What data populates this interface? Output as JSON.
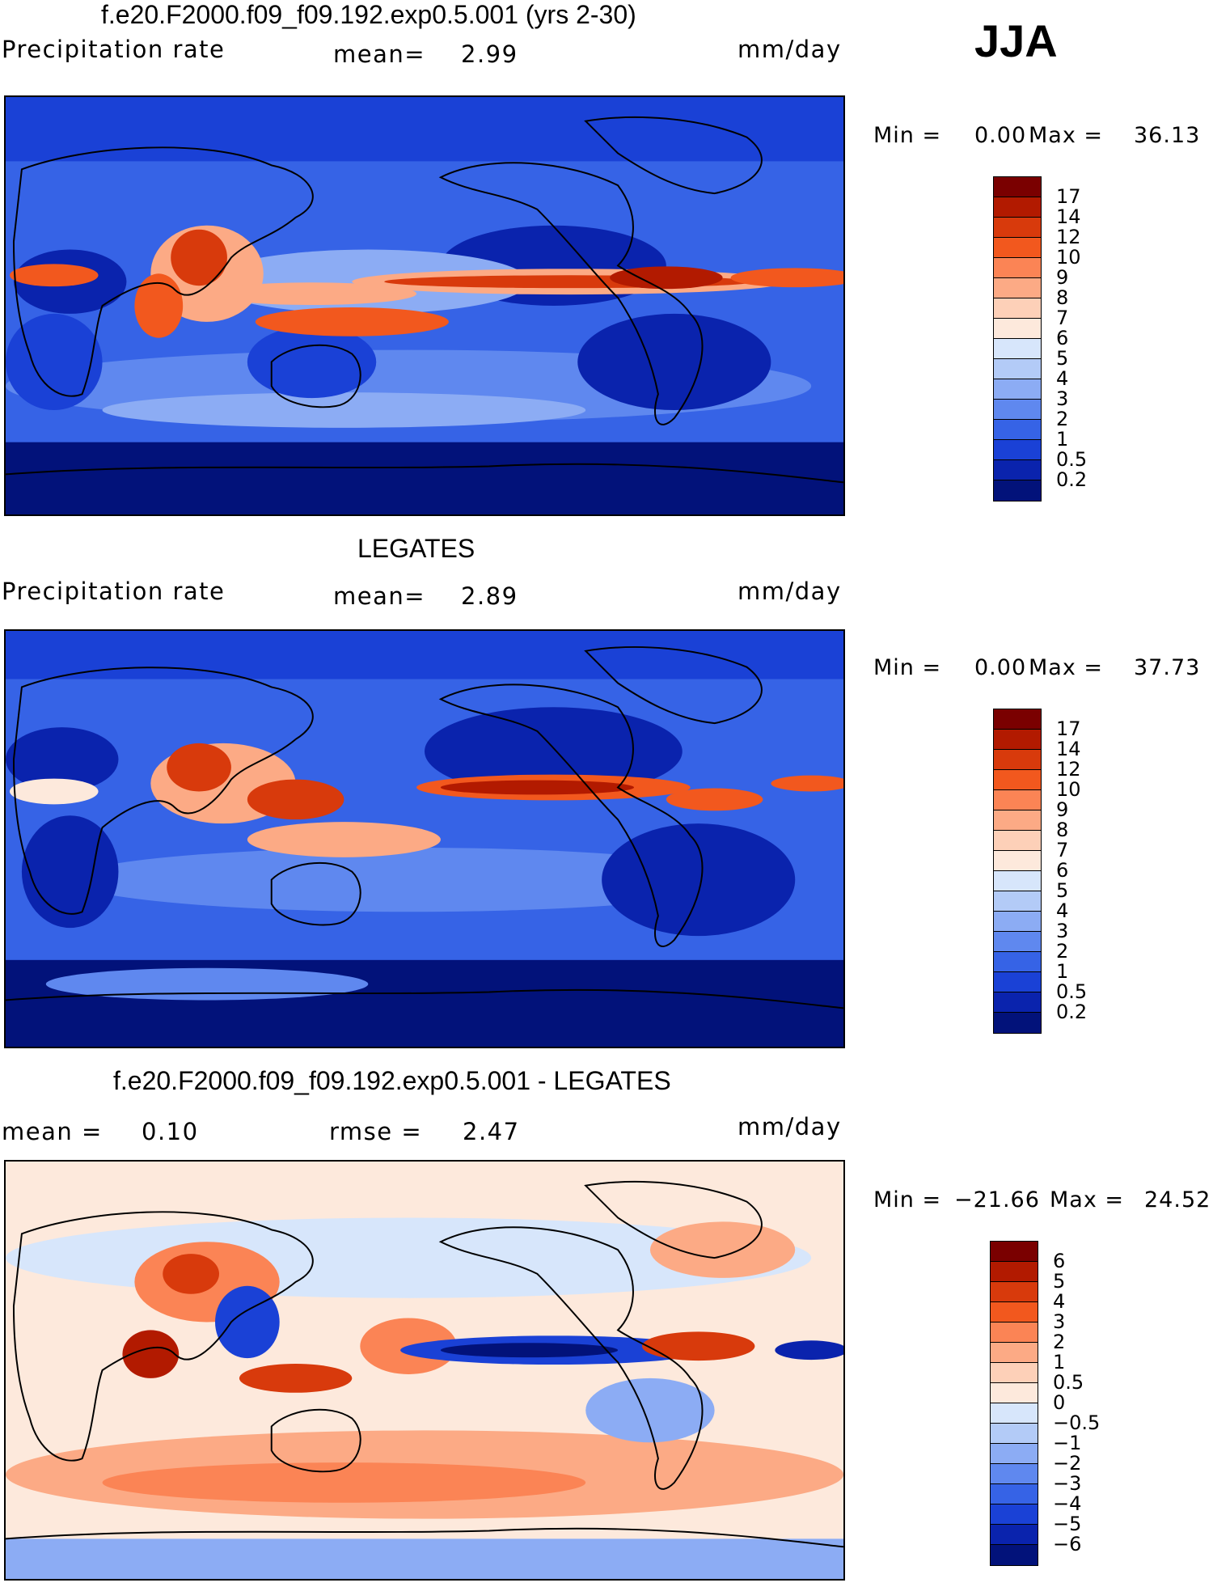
{
  "season": "JJA",
  "panels": [
    {
      "title": "f.e20.F2000.f09_f09.192.exp0.5.001 (yrs 2-30)",
      "left_label": "Precipitation rate",
      "mid_label": "mean=",
      "mid_value": "2.99",
      "units": "mm/day",
      "min_label": "Min =",
      "min_value": "0.00",
      "max_label": "Max =",
      "max_value": "36.13",
      "colorbar": {
        "levels": [
          "17",
          "14",
          "12",
          "10",
          "9",
          "8",
          "7",
          "6",
          "5",
          "4",
          "3",
          "2",
          "1",
          "0.5",
          "0.2"
        ],
        "colors": [
          "#7a0000",
          "#b21a00",
          "#d83a0c",
          "#f2581e",
          "#fb8455",
          "#fcaa85",
          "#fdd0b8",
          "#fde9dc",
          "#d7e6fb",
          "#b3cbf7",
          "#8cacf4",
          "#5f88ef",
          "#3663e6",
          "#1a41d6",
          "#0a23ad",
          "#02127a"
        ]
      }
    },
    {
      "title": "LEGATES",
      "left_label": "Precipitation rate",
      "mid_label": "mean=",
      "mid_value": "2.89",
      "units": "mm/day",
      "min_label": "Min =",
      "min_value": "0.00",
      "max_label": "Max =",
      "max_value": "37.73",
      "colorbar": {
        "levels": [
          "17",
          "14",
          "12",
          "10",
          "9",
          "8",
          "7",
          "6",
          "5",
          "4",
          "3",
          "2",
          "1",
          "0.5",
          "0.2"
        ],
        "colors": [
          "#7a0000",
          "#b21a00",
          "#d83a0c",
          "#f2581e",
          "#fb8455",
          "#fcaa85",
          "#fdd0b8",
          "#fde9dc",
          "#d7e6fb",
          "#b3cbf7",
          "#8cacf4",
          "#5f88ef",
          "#3663e6",
          "#1a41d6",
          "#0a23ad",
          "#02127a"
        ]
      }
    },
    {
      "title": "f.e20.F2000.f09_f09.192.exp0.5.001 - LEGATES",
      "left_label": "mean =",
      "left_value": "0.10",
      "mid_label": "rmse =",
      "mid_value": "2.47",
      "units": "mm/day",
      "min_label": "Min =",
      "min_value": "−21.66",
      "max_label": "Max =",
      "max_value": "24.52",
      "colorbar": {
        "levels": [
          "6",
          "5",
          "4",
          "3",
          "2",
          "1",
          "0.5",
          "0",
          "−0.5",
          "−1",
          "−2",
          "−3",
          "−4",
          "−5",
          "−6"
        ],
        "colors": [
          "#7a0000",
          "#b21a00",
          "#d83a0c",
          "#f2581e",
          "#fb8455",
          "#fcaa85",
          "#fdd0b8",
          "#fde9dc",
          "#d7e6fb",
          "#b3cbf7",
          "#8cacf4",
          "#5f88ef",
          "#3663e6",
          "#1a41d6",
          "#0a23ad",
          "#02127a"
        ]
      }
    }
  ],
  "map_colors": {
    "ocean_dry": "#0a23ad",
    "ocean_mid": "#3663e6",
    "ocean_light": "#8cacf4",
    "wet": "#f2581e",
    "very_wet": "#b21a00",
    "diff_bg": "#fde9dc",
    "diff_pos": "#fb8455",
    "diff_neg": "#5f88ef",
    "diff_strong_neg": "#0a23ad",
    "coast": "#000000"
  }
}
